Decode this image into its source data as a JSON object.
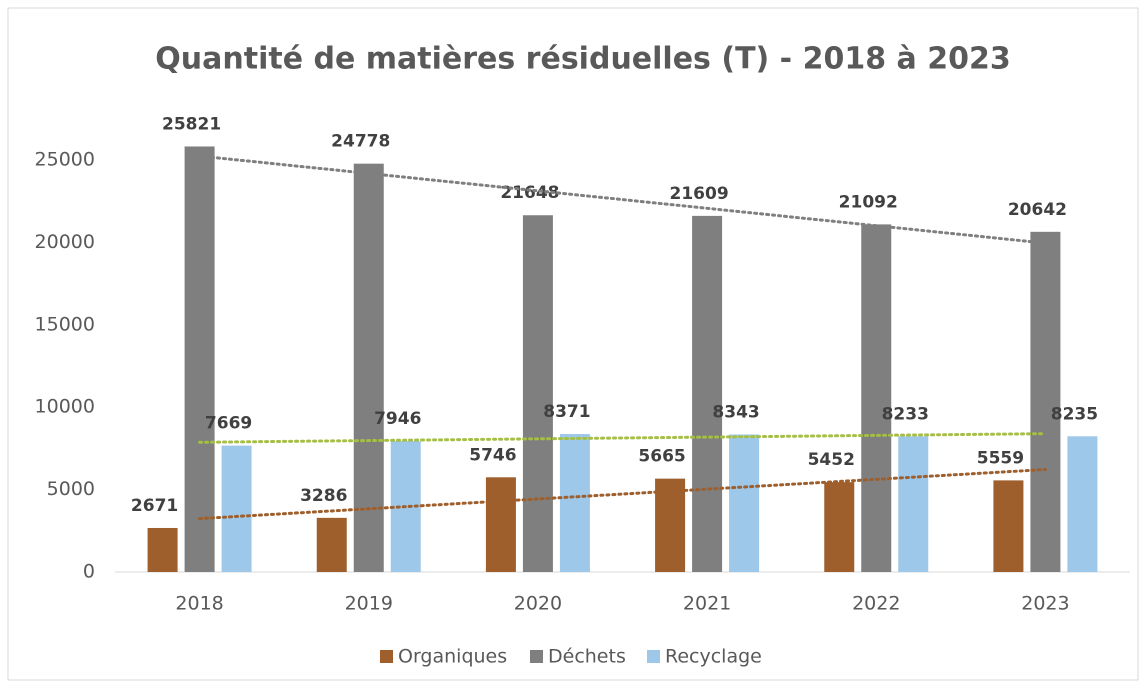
{
  "chart_data": {
    "type": "bar",
    "title": "Quantité de matières résiduelles (T) - 2018 à 2023",
    "categories": [
      "2018",
      "2019",
      "2020",
      "2021",
      "2022",
      "2023"
    ],
    "series": [
      {
        "name": "Organiques",
        "color": "#9e5f2c",
        "trend_color": "#9e5f2c",
        "values": [
          2671,
          3286,
          5746,
          5665,
          5452,
          5559
        ]
      },
      {
        "name": "Déchets",
        "color": "#7f7f7f",
        "trend_color": "#7f7f7f",
        "values": [
          25821,
          24778,
          21648,
          21609,
          21092,
          20642
        ]
      },
      {
        "name": "Recyclage",
        "color": "#9dc8ea",
        "trend_color": "#a5bf45",
        "values": [
          7669,
          7946,
          8371,
          8343,
          8233,
          8235
        ]
      }
    ],
    "ylim": [
      0,
      25000
    ],
    "yticks": [
      0,
      5000,
      10000,
      15000,
      20000,
      25000
    ],
    "grid": false,
    "trendline": true,
    "legend": "bottom"
  }
}
